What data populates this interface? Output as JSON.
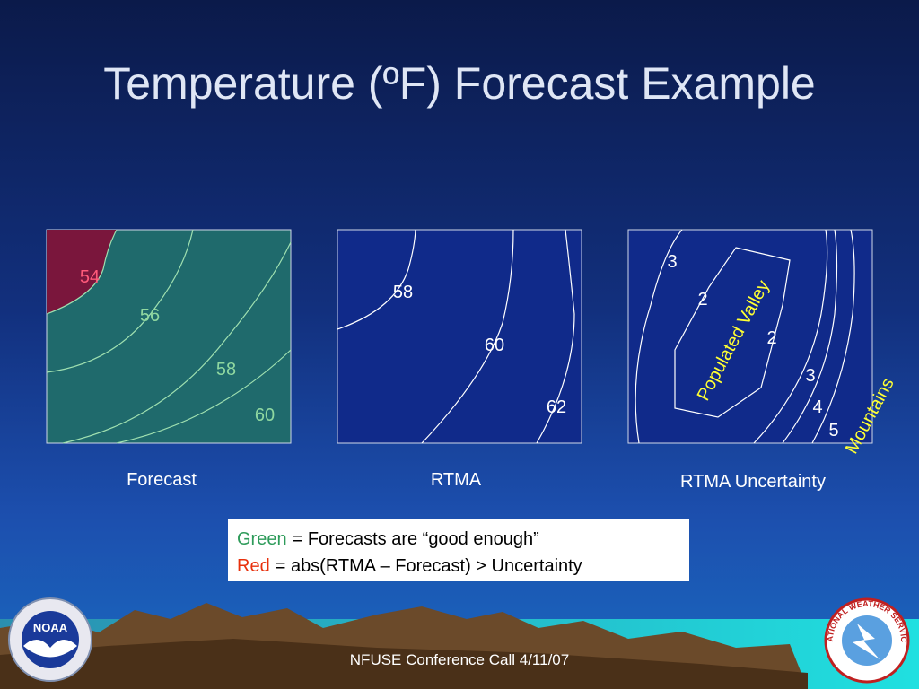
{
  "title": "Temperature (ºF) Forecast Example",
  "panels": [
    {
      "caption": "Forecast",
      "contour_labels": [
        "54",
        "56",
        "58",
        "60"
      ]
    },
    {
      "caption": "RTMA",
      "contour_labels": [
        "58",
        "60",
        "62"
      ]
    },
    {
      "caption": "RTMA Uncertainty",
      "contour_labels": [
        "3",
        "2",
        "2",
        "3",
        "4",
        "5"
      ],
      "annotations": [
        "Populated Valley",
        "Mountains"
      ]
    }
  ],
  "legend": [
    {
      "key": "Green",
      "text": "= Forecasts are “good enough”"
    },
    {
      "key": "Red",
      "text": "= abs(RTMA – Forecast) > Uncertainty"
    }
  ],
  "footer": "NFUSE Conference Call 4/11/07",
  "logos": {
    "left": "NOAA",
    "right": "NATIONAL WEATHER SERVICE"
  }
}
